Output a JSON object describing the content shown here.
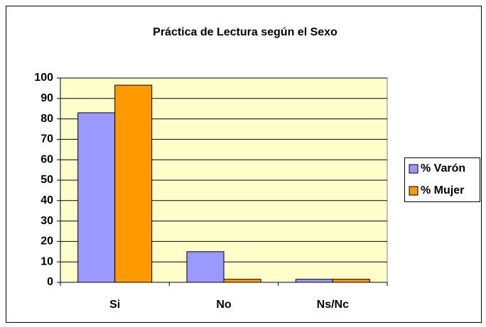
{
  "chart_data": {
    "type": "bar",
    "title": "Práctica de Lectura según el Sexo",
    "categories": [
      "Si",
      "No",
      "Ns/Nc"
    ],
    "series": [
      {
        "name": "% Varón",
        "color": "#9999ff",
        "values": [
          83,
          15,
          1.5
        ]
      },
      {
        "name": "% Mujer",
        "color": "#ff9900",
        "values": [
          96.5,
          1.5,
          1.5
        ]
      }
    ],
    "ylim": [
      0,
      100
    ],
    "yticks": [
      0,
      10,
      20,
      30,
      40,
      50,
      60,
      70,
      80,
      90,
      100
    ],
    "grid": true,
    "legend": "right",
    "plot_background": "#ffffcc"
  }
}
